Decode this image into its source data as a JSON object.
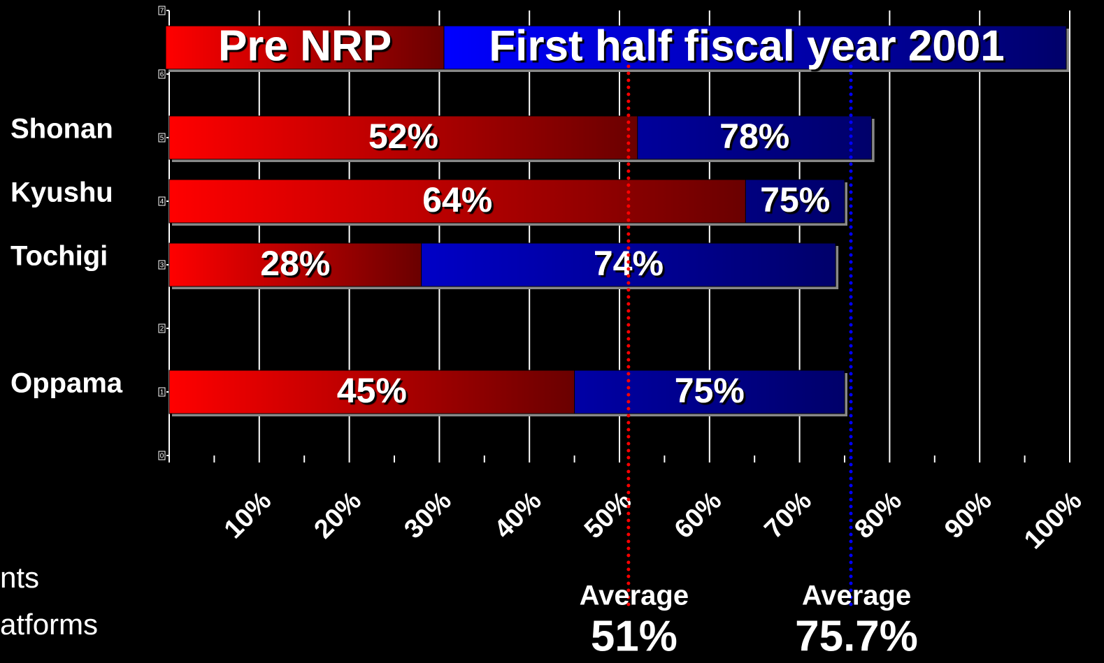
{
  "chart_data": {
    "type": "bar",
    "orientation": "horizontal",
    "categories": [
      "Shonan",
      "Kyushu",
      "Tochigi",
      "Oppama"
    ],
    "positions": [
      5,
      4,
      3,
      1
    ],
    "series": [
      {
        "name": "Pre NRP",
        "color": "#ff0000",
        "values": [
          52,
          64,
          28,
          45
        ],
        "value_labels": [
          "52%",
          "64%",
          "28%",
          "45%"
        ]
      },
      {
        "name": "First half fiscal year 2001",
        "color": "#0000ff",
        "values": [
          78,
          75,
          74,
          75
        ],
        "value_labels": [
          "78%",
          "75%",
          "74%",
          "75%"
        ]
      }
    ],
    "xlim": [
      0,
      100
    ],
    "xticks": [
      {
        "value": 10,
        "label": "10%"
      },
      {
        "value": 20,
        "label": "20%"
      },
      {
        "value": 30,
        "label": "30%"
      },
      {
        "value": 40,
        "label": "40%"
      },
      {
        "value": 50,
        "label": "50%"
      },
      {
        "value": 60,
        "label": "60%"
      },
      {
        "value": 70,
        "label": "70%"
      },
      {
        "value": 80,
        "label": "80%"
      },
      {
        "value": 90,
        "label": "90%"
      },
      {
        "value": 100,
        "label": "100%"
      }
    ],
    "minor_xticks": [
      5,
      15,
      25,
      35,
      45,
      55,
      65,
      75,
      85,
      95
    ],
    "ylim": [
      0,
      7
    ],
    "yticks": [
      0,
      1,
      2,
      3,
      4,
      5,
      6,
      7
    ],
    "grid": true,
    "averages": [
      {
        "label": "Average",
        "value": 51,
        "value_label": "51%",
        "color": "#ff0000"
      },
      {
        "label": "Average",
        "value": 75.7,
        "value_label": "75.7%",
        "color": "#0000ff"
      }
    ]
  },
  "side_text": [
    "nts",
    "atforms"
  ]
}
